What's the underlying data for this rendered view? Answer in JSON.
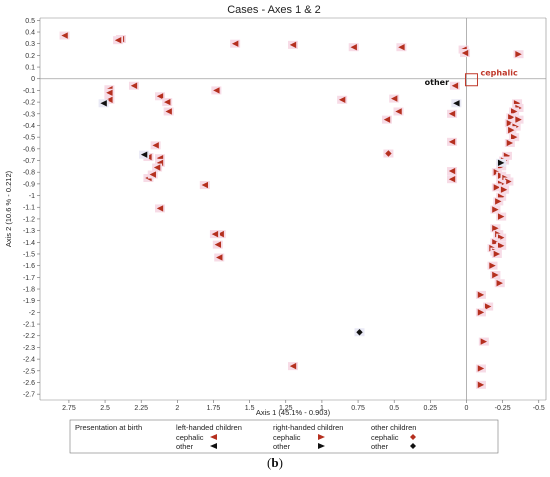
{
  "chart_data": {
    "type": "scatter",
    "title": "Cases - Axes 1 & 2",
    "xlabel": "Axis 1 (45.1% - 0.903)",
    "ylabel": "Axis 2 (10.6 % - 0.212)",
    "x_reversed": true,
    "xlim": [
      2.95,
      -0.55
    ],
    "ylim": [
      -2.75,
      0.52
    ],
    "x_ticks": [
      2.75,
      2.5,
      2.25,
      2,
      1.75,
      1.5,
      1.25,
      1,
      0.75,
      0.5,
      0.25,
      0,
      -0.25,
      -0.5
    ],
    "x_tick_labels": [
      "2.75",
      "2.5",
      "2.25",
      "2",
      "1.75",
      "1.5",
      "1.25",
      "1",
      "0.75",
      "0.5",
      "0.25",
      "0",
      "-0.25",
      "-0.5"
    ],
    "y_ticks": [
      0.5,
      0.4,
      0.3,
      0.2,
      0.1,
      0,
      -0.1,
      -0.2,
      -0.3,
      -0.4,
      -0.5,
      -0.6,
      -0.7,
      -0.8,
      -0.9,
      -1,
      -1.1,
      -1.2,
      -1.3,
      -1.4,
      -1.5,
      -1.6,
      -1.7,
      -1.8,
      -1.9,
      -2,
      -2.1,
      -2.2,
      -2.3,
      -2.4,
      -2.5,
      -2.6,
      -2.7
    ],
    "y_tick_labels": [
      "0.5",
      "0.4",
      "0.3",
      "0.2",
      "0.1",
      "0",
      "-0.1",
      "-0.2",
      "-0.3",
      "-0.4",
      "-0.5",
      "-0.6",
      "-0.7",
      "-0.8",
      "-0.9",
      "-1",
      "-1.1",
      "-1.2",
      "-1.3",
      "-1.4",
      "-1.5",
      "-1.6",
      "-1.7",
      "-1.8",
      "-1.9",
      "-2",
      "-2.1",
      "-2.2",
      "-2.3",
      "-2.4",
      "-2.5",
      "-2.6",
      "-2.7"
    ],
    "reference_lines": {
      "x": 0,
      "y": 0
    },
    "grid": false,
    "legend_position": "bottom",
    "annotations": [
      {
        "text": "cephalic",
        "x": 0,
        "y": 0,
        "color": "#c0392b",
        "boxed": true
      },
      {
        "text": "other",
        "x": 0.1,
        "y": -0.01,
        "color": "#111111"
      }
    ],
    "legend": {
      "title": "Presentation at birth",
      "groups": [
        {
          "name": "left-handed children",
          "items": [
            {
              "label": "cephalic",
              "series": "left-cephalic"
            },
            {
              "label": "other",
              "series": "left-other"
            }
          ]
        },
        {
          "name": "right-handed children",
          "items": [
            {
              "label": "cephalic",
              "series": "right-cephalic"
            },
            {
              "label": "other",
              "series": "right-other"
            }
          ]
        },
        {
          "name": "other children",
          "items": [
            {
              "label": "cephalic",
              "series": "other-cephalic"
            },
            {
              "label": "other",
              "series": "other-other"
            }
          ]
        }
      ]
    },
    "series": [
      {
        "id": "left-cephalic",
        "marker": "triangle-left",
        "color": "#b5301f",
        "points": [
          [
            2.78,
            0.37
          ],
          [
            2.39,
            0.34
          ],
          [
            1.6,
            0.3
          ],
          [
            1.2,
            0.29
          ],
          [
            0.78,
            0.27
          ],
          [
            0.45,
            0.27
          ],
          [
            0.02,
            0.25
          ],
          [
            0.01,
            0.22
          ],
          [
            2.47,
            -0.09
          ],
          [
            2.47,
            -0.12
          ],
          [
            2.47,
            -0.18
          ],
          [
            2.3,
            -0.06
          ],
          [
            2.12,
            -0.15
          ],
          [
            2.07,
            -0.2
          ],
          [
            2.06,
            -0.28
          ],
          [
            1.73,
            -0.1
          ],
          [
            2.2,
            -0.67
          ],
          [
            2.12,
            -0.68
          ],
          [
            2.12,
            -0.72
          ],
          [
            2.14,
            -0.76
          ],
          [
            2.2,
            -0.85
          ],
          [
            2.17,
            -0.82
          ],
          [
            2.15,
            -0.57
          ],
          [
            2.12,
            -1.11
          ],
          [
            1.7,
            -1.33
          ],
          [
            1.74,
            -1.33
          ],
          [
            1.72,
            -1.42
          ],
          [
            1.71,
            -1.53
          ],
          [
            1.2,
            -2.46
          ],
          [
            0.5,
            -0.17
          ],
          [
            0.55,
            -0.35
          ],
          [
            0.47,
            -0.28
          ],
          [
            0.08,
            -0.06
          ],
          [
            0.1,
            -0.3
          ],
          [
            0.1,
            -0.79
          ],
          [
            0.1,
            -0.86
          ],
          [
            0.1,
            -0.54
          ],
          [
            0.86,
            -0.18
          ],
          [
            1.81,
            -0.91
          ],
          [
            2.41,
            0.33
          ]
        ]
      },
      {
        "id": "left-other",
        "marker": "triangle-left",
        "color": "#111111",
        "points": [
          [
            2.51,
            -0.21
          ],
          [
            2.23,
            -0.65
          ],
          [
            0.07,
            -0.21
          ]
        ]
      },
      {
        "id": "right-cephalic",
        "marker": "triangle-right",
        "color": "#b5301f",
        "points": [
          [
            -0.36,
            0.21
          ],
          [
            -0.35,
            -0.21
          ],
          [
            -0.36,
            -0.25
          ],
          [
            -0.33,
            -0.28
          ],
          [
            -0.31,
            -0.33
          ],
          [
            -0.36,
            -0.35
          ],
          [
            -0.3,
            -0.38
          ],
          [
            -0.34,
            -0.41
          ],
          [
            -0.31,
            -0.44
          ],
          [
            -0.33,
            -0.5
          ],
          [
            -0.3,
            -0.55
          ],
          [
            -0.28,
            -0.66
          ],
          [
            -0.26,
            -0.7
          ],
          [
            -0.24,
            -0.75
          ],
          [
            -0.21,
            -0.8
          ],
          [
            -0.24,
            -0.83
          ],
          [
            -0.27,
            -0.85
          ],
          [
            -0.29,
            -0.88
          ],
          [
            -0.24,
            -0.9
          ],
          [
            -0.21,
            -0.93
          ],
          [
            -0.26,
            -0.95
          ],
          [
            -0.24,
            -1.01
          ],
          [
            -0.22,
            -1.05
          ],
          [
            -0.2,
            -1.12
          ],
          [
            -0.24,
            -1.18
          ],
          [
            -0.2,
            -1.28
          ],
          [
            -0.22,
            -1.33
          ],
          [
            -0.24,
            -1.36
          ],
          [
            -0.2,
            -1.4
          ],
          [
            -0.24,
            -1.43
          ],
          [
            -0.18,
            -1.45
          ],
          [
            -0.2,
            -1.48
          ],
          [
            -0.21,
            -1.5
          ],
          [
            -0.18,
            -1.6
          ],
          [
            -0.2,
            -1.68
          ],
          [
            -0.23,
            -1.75
          ],
          [
            -0.1,
            -1.85
          ],
          [
            -0.15,
            -1.95
          ],
          [
            -0.1,
            -2.0
          ],
          [
            -0.12,
            -2.25
          ],
          [
            -0.1,
            -2.48
          ],
          [
            -0.1,
            -2.62
          ]
        ]
      },
      {
        "id": "right-other",
        "marker": "triangle-right",
        "color": "#111111",
        "points": [
          [
            -0.24,
            -0.72
          ]
        ]
      },
      {
        "id": "other-cephalic",
        "marker": "diamond",
        "color": "#b5301f",
        "points": [
          [
            0.54,
            -0.64
          ]
        ]
      },
      {
        "id": "other-other",
        "marker": "diamond",
        "color": "#111111",
        "points": [
          [
            0.74,
            -2.17
          ]
        ]
      }
    ]
  }
}
